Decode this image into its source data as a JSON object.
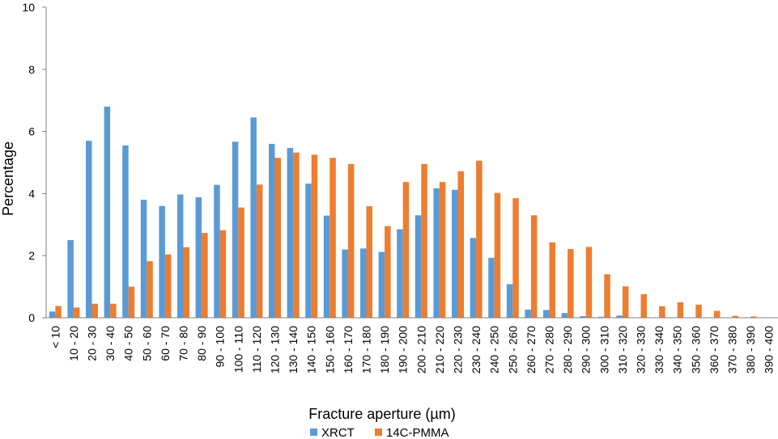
{
  "chart_data": {
    "type": "bar",
    "title": "",
    "xlabel": "Fracture aperture (µm)",
    "ylabel": "Percentage",
    "ylim": [
      0,
      10
    ],
    "yticks": [
      0,
      2,
      4,
      6,
      8,
      10
    ],
    "grid": false,
    "legend_position": "bottom",
    "categories": [
      "< 10",
      "10 - 20",
      "20 - 30",
      "30 - 40",
      "40 - 50",
      "50 - 60",
      "60 - 70",
      "70 - 80",
      "80 - 90",
      "90 - 100",
      "100 - 110",
      "110 - 120",
      "120 - 130",
      "130 - 140",
      "140 - 150",
      "150 - 160",
      "160 - 170",
      "170 - 180",
      "180 - 190",
      "190 - 200",
      "200 - 210",
      "210 - 220",
      "220 - 230",
      "230 - 240",
      "240 - 250",
      "250 - 260",
      "260 - 270",
      "270 - 280",
      "280 - 290",
      "290 - 300",
      "300 - 310",
      "310 - 320",
      "320 - 330",
      "330 - 340",
      "340 - 350",
      "350 - 360",
      "360 - 370",
      "370 - 380",
      "380 - 390",
      "390 - 400"
    ],
    "series": [
      {
        "name": "XRCT",
        "color": "#5B9BD5",
        "values": [
          0.2,
          2.5,
          5.7,
          6.8,
          5.55,
          3.8,
          3.6,
          3.97,
          3.88,
          4.28,
          5.67,
          6.45,
          5.6,
          5.47,
          4.32,
          3.29,
          2.2,
          2.23,
          2.12,
          2.85,
          3.3,
          4.17,
          4.12,
          2.57,
          1.93,
          1.08,
          0.26,
          0.25,
          0.15,
          0.05,
          0.03,
          0.07,
          0,
          0,
          0,
          0,
          0,
          0,
          0,
          0
        ]
      },
      {
        "name": "14C-PMMA",
        "color": "#ED7D31",
        "values": [
          0.38,
          0.33,
          0.45,
          0.45,
          1.0,
          1.82,
          2.04,
          2.27,
          2.73,
          2.82,
          3.55,
          4.29,
          5.15,
          5.32,
          5.25,
          5.15,
          4.95,
          3.59,
          2.95,
          4.37,
          4.95,
          4.37,
          4.72,
          5.06,
          4.02,
          3.85,
          3.3,
          2.43,
          2.21,
          2.28,
          1.4,
          1.01,
          0.76,
          0.37,
          0.5,
          0.42,
          0.22,
          0.06,
          0.04,
          0
        ]
      }
    ]
  }
}
